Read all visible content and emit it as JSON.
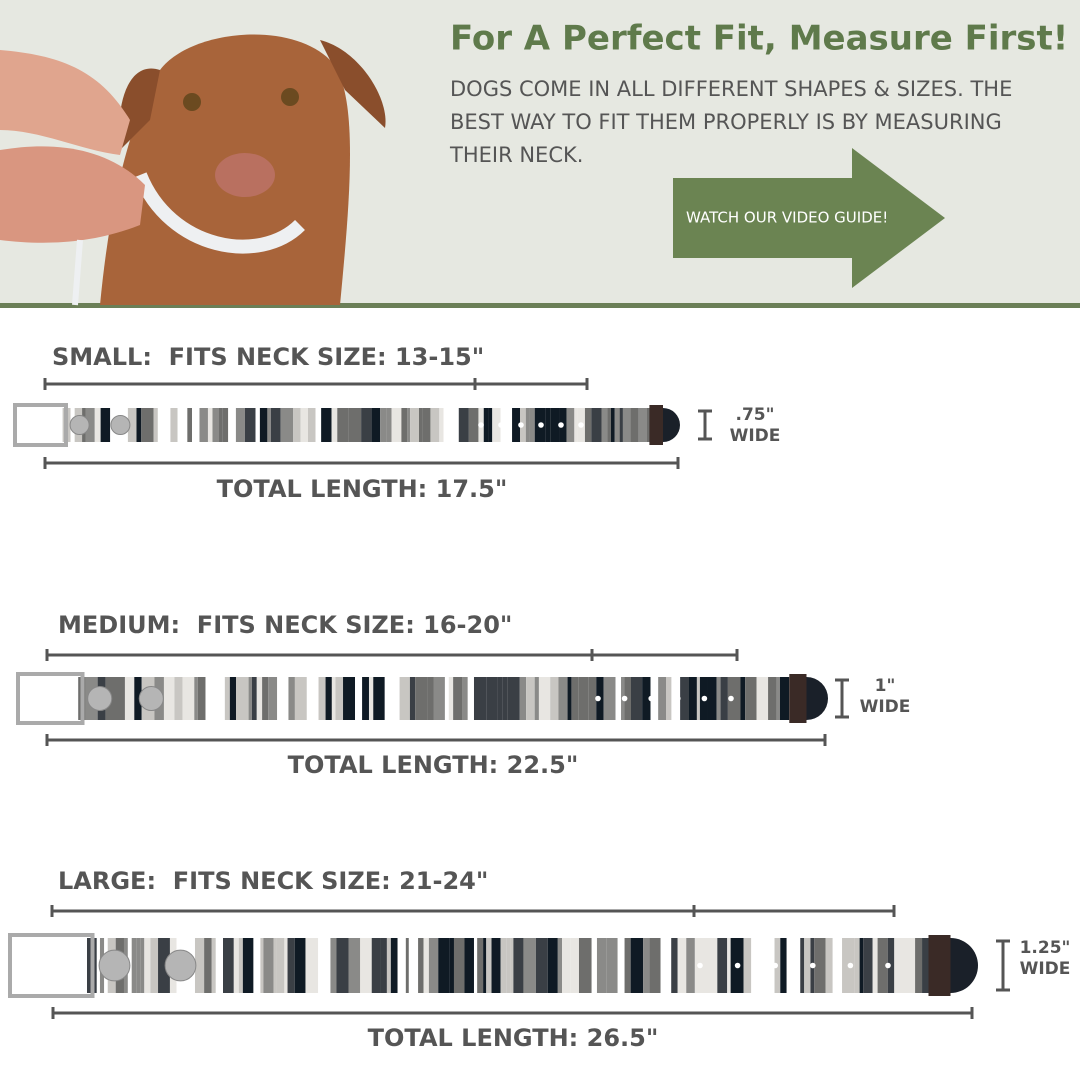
{
  "header": {
    "title": "For A Perfect Fit, Measure First!",
    "description": [
      "DOGS COME IN ALL DIFFERENT SHAPES & SIZES. THE",
      "BEST WAY TO FIT THEM PROPERLY IS BY MEASURING",
      "THEIR NECK."
    ],
    "button": "WATCH OUR VIDEO GUIDE!"
  },
  "sizes": [
    {
      "label": "SMALL:  FITS NECK SIZE: 13-15\"",
      "total_length": "TOTAL LENGTH: 17.5\"",
      "width": ".75\"",
      "width_word": "WIDE"
    },
    {
      "label": "MEDIUM:  FITS NECK SIZE: 16-20\"",
      "total_length": "TOTAL LENGTH: 22.5\"",
      "width": "1\"",
      "width_word": "WIDE"
    },
    {
      "label": "LARGE:  FITS NECK SIZE: 21-24\"",
      "total_length": "TOTAL LENGTH: 26.5\"",
      "width": "1.25\"",
      "width_word": "WIDE"
    }
  ]
}
